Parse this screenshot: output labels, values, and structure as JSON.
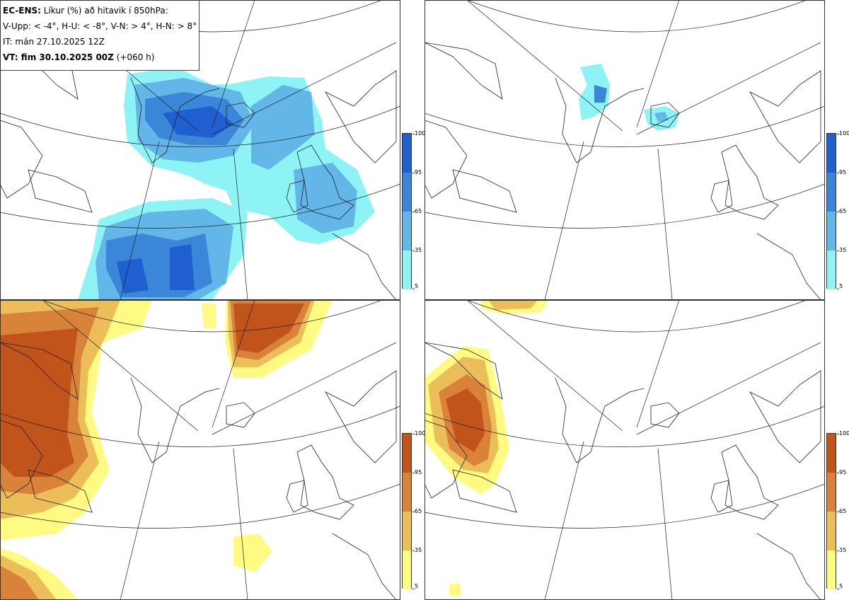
{
  "header": {
    "line1_bold": "EC-ENS:",
    "line1_rest": " Líkur (%) að hitavik í 850hPa:",
    "line2": "V-Upp: < -4°, H-U: < -8°, V-N: > 4°, H-N: > 8°",
    "line3": "IT: mán 27.10.2025 12Z",
    "line4_bold": "VT: fim 30.10.2025 00Z",
    "line4_rest": " (+060 h)"
  },
  "colorbar": {
    "ticks": [
      "100",
      "95",
      "65",
      "35",
      "5"
    ],
    "cold_colors": [
      "#1f5fcf",
      "#3b86d9",
      "#62b6e8",
      "#8ef3f5"
    ],
    "warm_colors": [
      "#c0541a",
      "#d9833a",
      "#ebbe5a",
      "#fffb82"
    ]
  },
  "panels": [
    {
      "name": "top-left",
      "label": "V-Upp",
      "palette": "cold"
    },
    {
      "name": "top-right",
      "label": "H-U",
      "palette": "cold"
    },
    {
      "name": "bottom-left",
      "label": "V-N",
      "palette": "warm"
    },
    {
      "name": "bottom-right",
      "label": "H-N",
      "palette": "warm"
    }
  ]
}
